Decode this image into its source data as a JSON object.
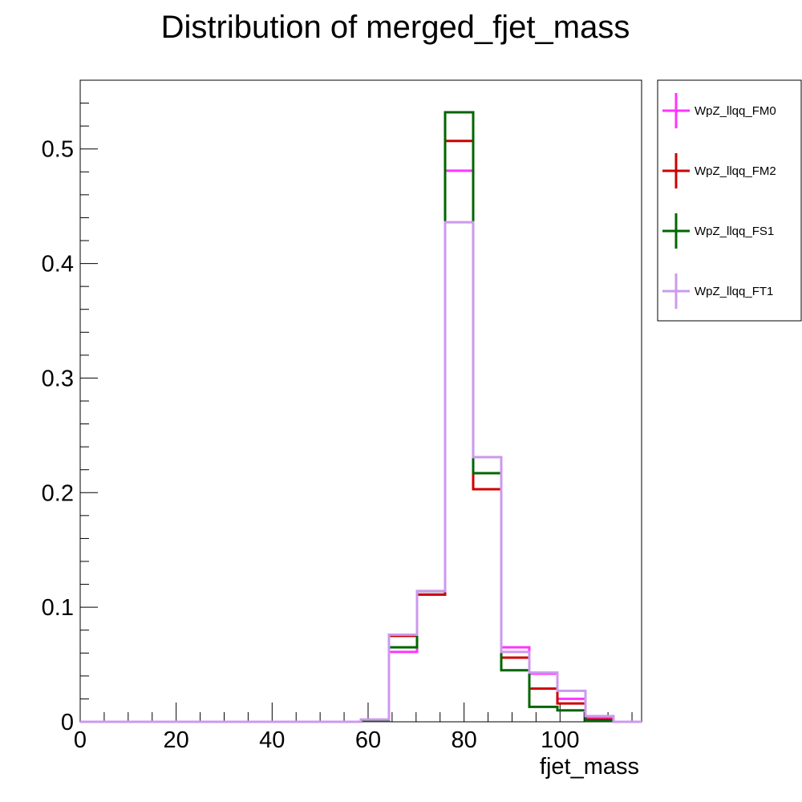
{
  "chart_data": {
    "type": "line",
    "title": "Distribution of merged_fjet_mass",
    "xlabel": "fjet_mass",
    "ylabel": "",
    "xlim": [
      0,
      117
    ],
    "ylim": [
      0,
      0.56
    ],
    "xticks": [
      0,
      20,
      40,
      60,
      80,
      100
    ],
    "xtick_labels": [
      "0",
      "20",
      "40",
      "60",
      "80",
      "100"
    ],
    "yticks": [
      0,
      0.1,
      0.2,
      0.3,
      0.4,
      0.5
    ],
    "ytick_labels": [
      "0",
      "0.1",
      "0.2",
      "0.3",
      "0.4",
      "0.5"
    ],
    "grid": false,
    "legend_position": "right",
    "bin_edges": [
      0,
      5.85,
      11.7,
      17.55,
      23.4,
      29.25,
      35.1,
      40.95,
      46.8,
      52.65,
      58.5,
      64.35,
      70.2,
      76.05,
      81.9,
      87.75,
      93.6,
      99.45,
      105.3,
      111.15,
      117
    ],
    "series": [
      {
        "name": "WpZ_llqq_FM0",
        "color": "#ff33ff",
        "values": [
          0,
          0,
          0,
          0,
          0,
          0,
          0,
          0,
          0,
          0,
          0.001,
          0.061,
          0.111,
          0.481,
          0.231,
          0.065,
          0.042,
          0.02,
          0.004,
          0
        ]
      },
      {
        "name": "WpZ_llqq_FM2",
        "color": "#cc0000",
        "values": [
          0,
          0,
          0,
          0,
          0,
          0,
          0,
          0,
          0,
          0,
          0.001,
          0.075,
          0.111,
          0.507,
          0.203,
          0.056,
          0.029,
          0.016,
          0.002,
          0
        ]
      },
      {
        "name": "WpZ_llqq_FS1",
        "color": "#006600",
        "values": [
          0,
          0,
          0,
          0,
          0,
          0,
          0,
          0,
          0,
          0,
          0.001,
          0.065,
          0.114,
          0.532,
          0.217,
          0.045,
          0.013,
          0.01,
          0.001,
          0
        ]
      },
      {
        "name": "WpZ_llqq_FT1",
        "color": "#cc99ee",
        "values": [
          0,
          0,
          0,
          0,
          0,
          0,
          0,
          0,
          0,
          0,
          0.002,
          0.076,
          0.114,
          0.436,
          0.231,
          0.061,
          0.043,
          0.027,
          0.005,
          0
        ]
      }
    ]
  }
}
